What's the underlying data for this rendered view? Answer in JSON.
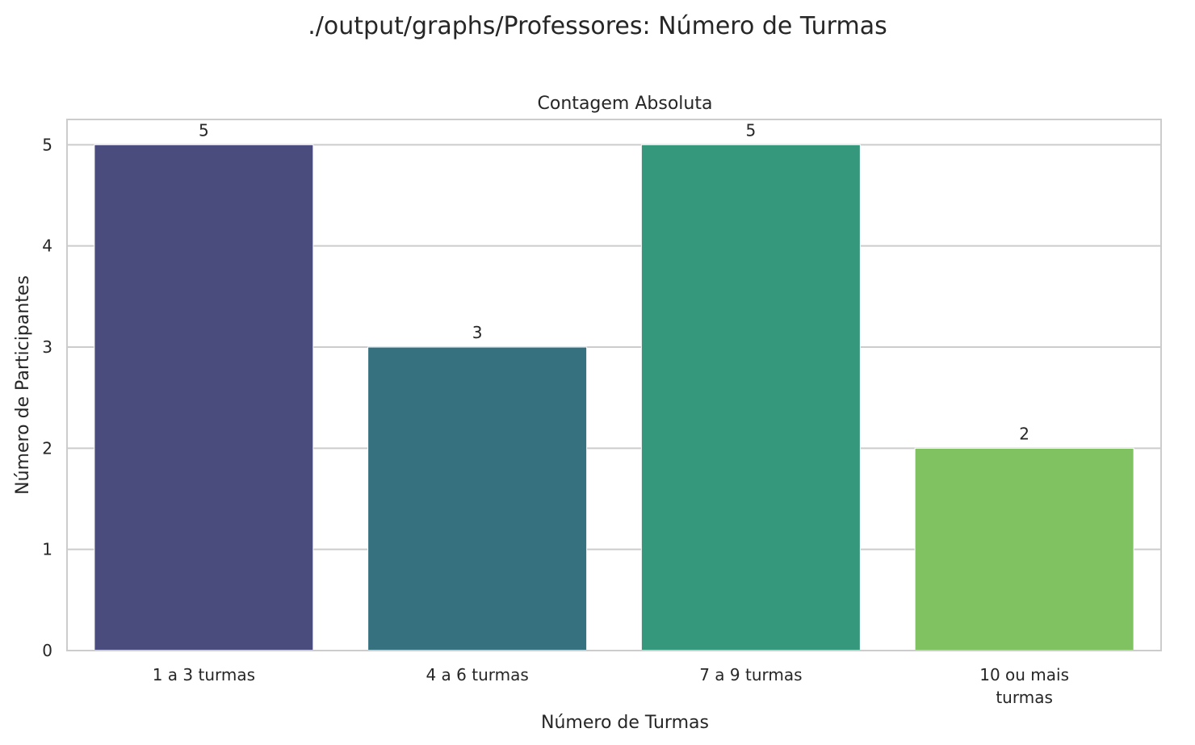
{
  "figure": {
    "suptitle": "./output/graphs/Professores: Número de Turmas"
  },
  "chart_data": {
    "type": "bar",
    "title": "Contagem Absoluta",
    "xlabel": "Número de Turmas",
    "ylabel": "Número de Participantes",
    "categories": [
      [
        "1 a 3 turmas"
      ],
      [
        "4 a 6 turmas"
      ],
      [
        "7 a 9 turmas"
      ],
      [
        "10 ou mais",
        "turmas"
      ]
    ],
    "values": [
      5,
      3,
      5,
      2
    ],
    "data_labels": [
      "5",
      "3",
      "5",
      "2"
    ],
    "yticks": [
      0,
      1,
      2,
      3,
      4,
      5
    ],
    "ylim": [
      0,
      5.25
    ],
    "grid": true,
    "colors": [
      "#4A4C7D",
      "#367180",
      "#35977B",
      "#80C262"
    ],
    "grid_color": "#cccccc",
    "frame_color": "#cccccc"
  }
}
